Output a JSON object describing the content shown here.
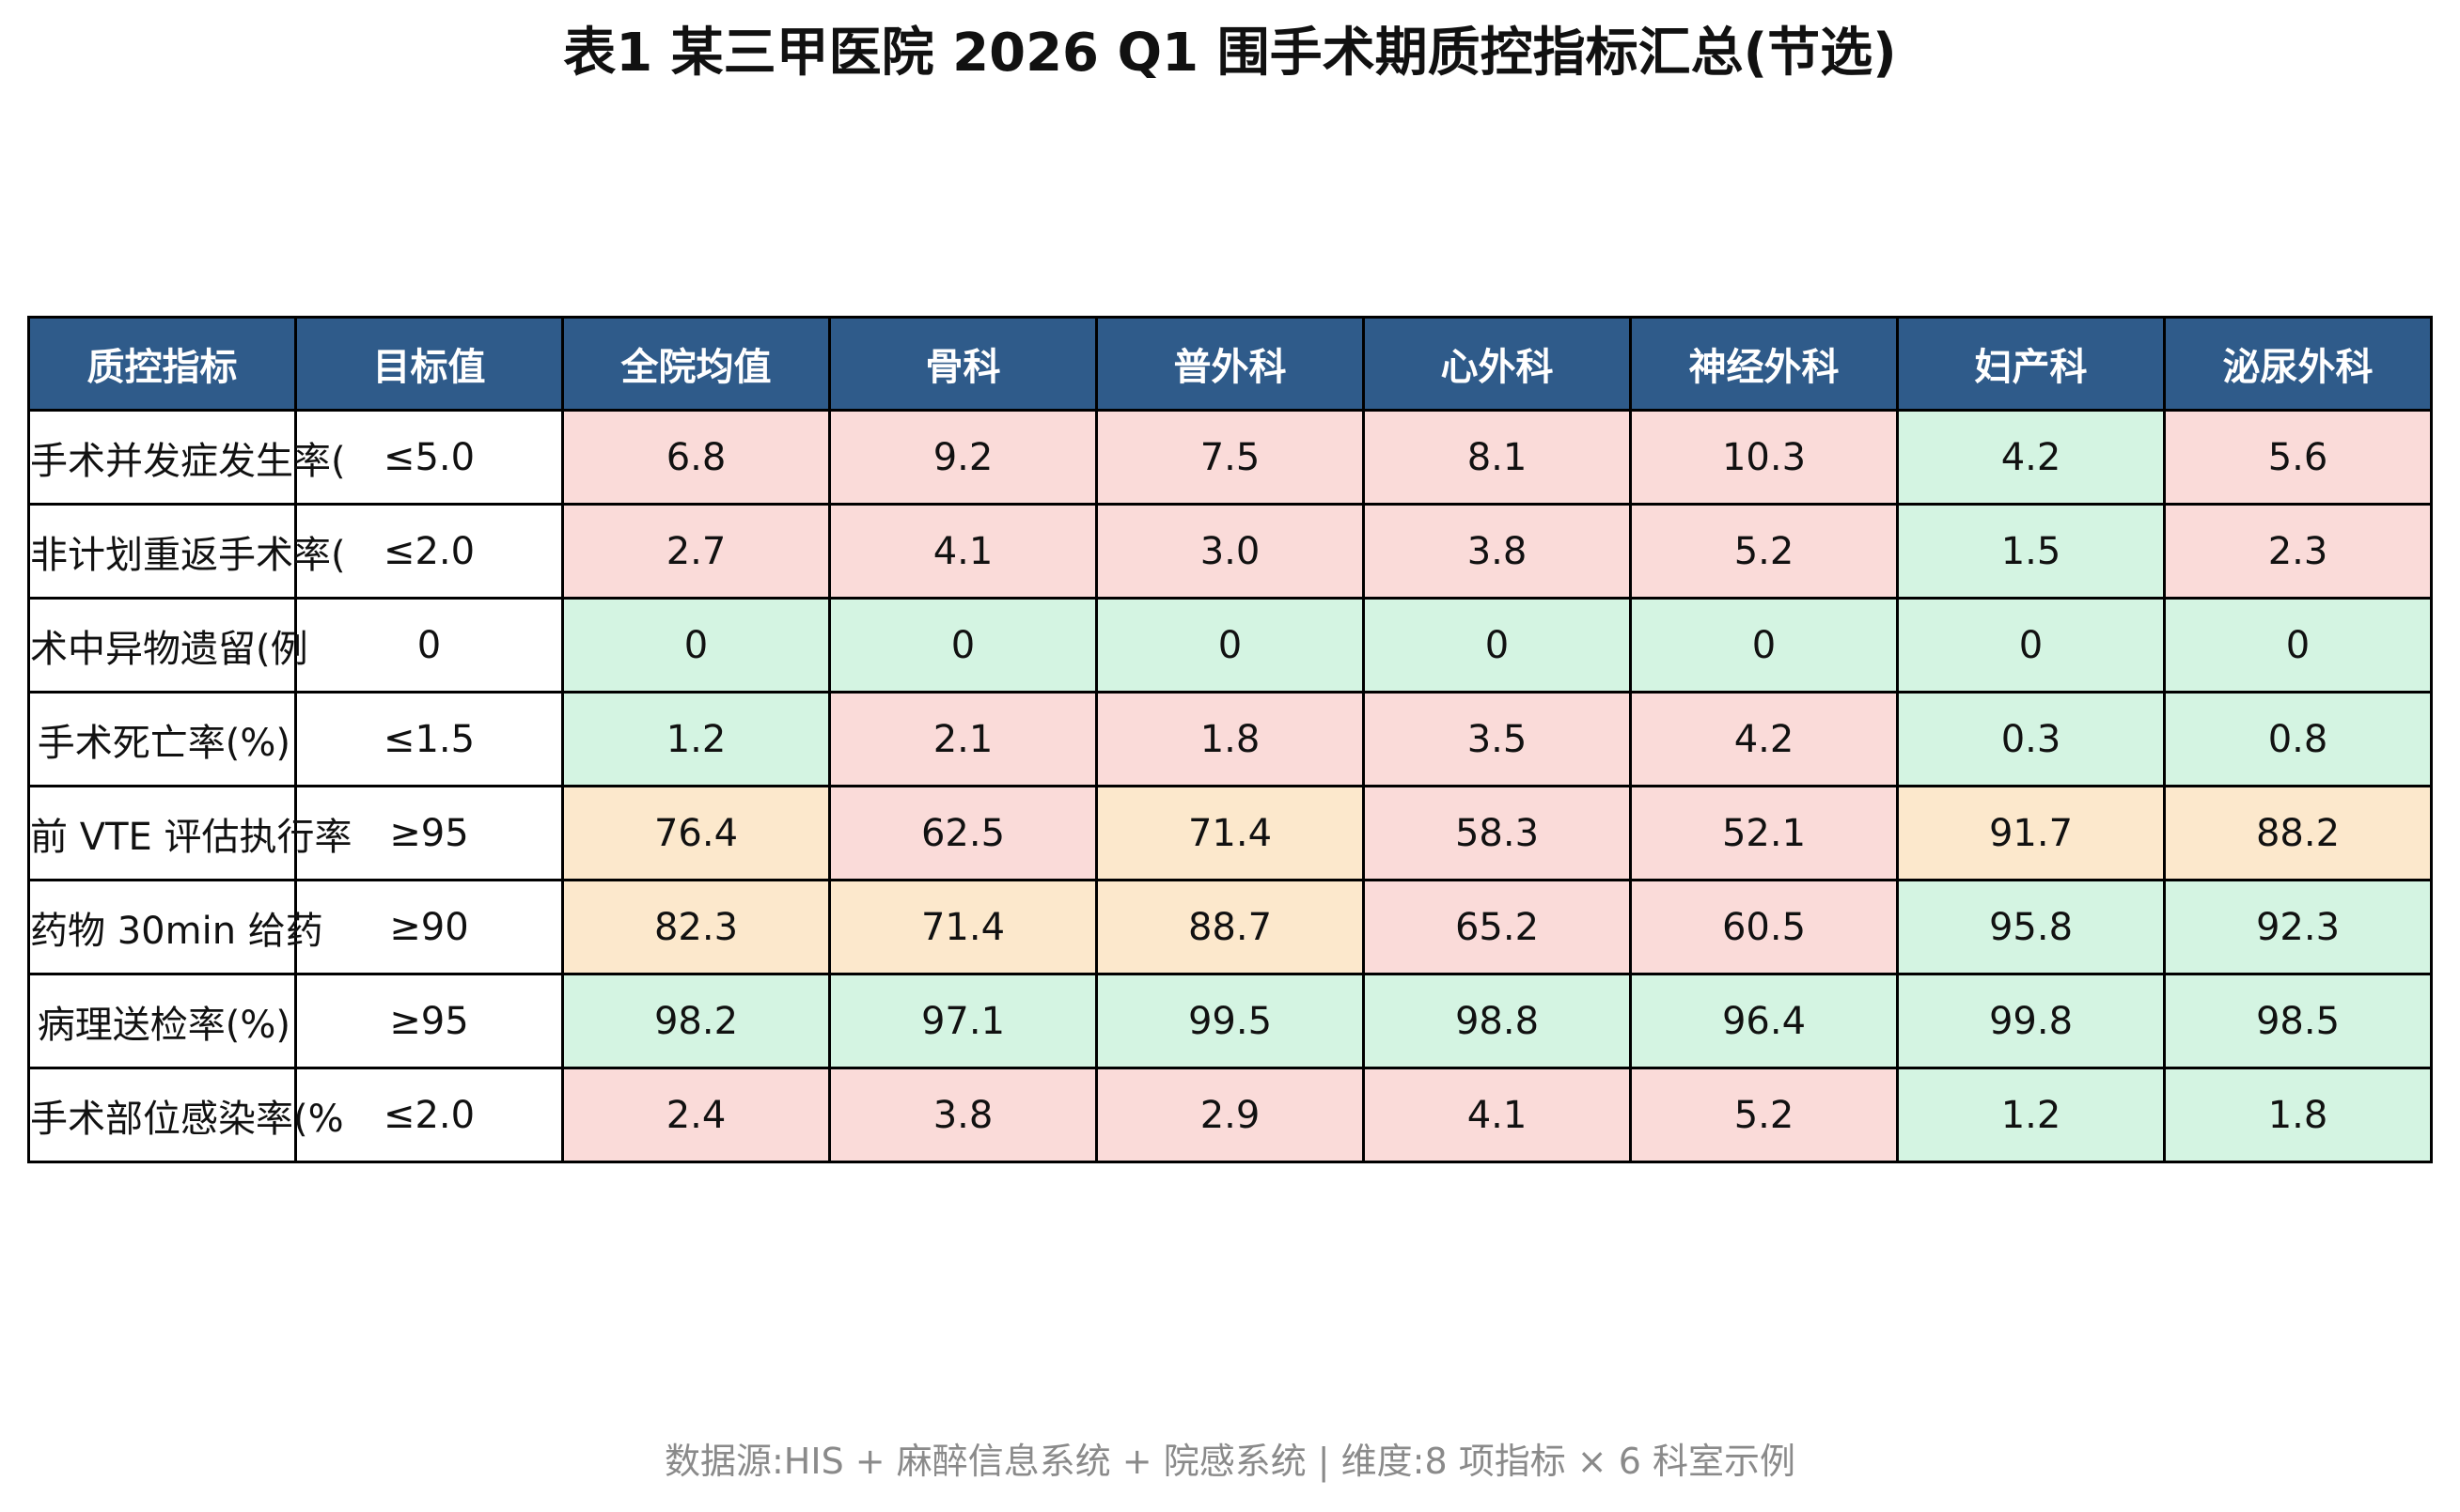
{
  "title": "表1 某三甲医院 2026 Q1 围手术期质控指标汇总(节选)",
  "footer": "数据源:HIS + 麻醉信息系统 + 院感系统 | 维度:8 项指标 × 6 科室示例",
  "colors": {
    "header": "#2f5b8a",
    "header_text": "#ffffff",
    "good": "#d4f4e2",
    "warn": "#fce8cc",
    "bad": "#fadbd9",
    "neutral": "#ffffff",
    "border": "#000000"
  },
  "chart_data": {
    "type": "table",
    "title": "表1 某三甲医院 2026 Q1 围手术期质控指标汇总(节选)",
    "columns": [
      "质控指标",
      "目标值",
      "全院均值",
      "骨科",
      "普外科",
      "心外科",
      "神经外科",
      "妇产科",
      "泌尿外科"
    ],
    "rows": [
      {
        "metric": "手术并发症发生率(",
        "target": "≤5.0",
        "values": [
          "6.8",
          "9.2",
          "7.5",
          "8.1",
          "10.3",
          "4.2",
          "5.6"
        ],
        "status": [
          "bad",
          "bad",
          "bad",
          "bad",
          "bad",
          "good",
          "bad"
        ]
      },
      {
        "metric": "非计划重返手术率(",
        "target": "≤2.0",
        "values": [
          "2.7",
          "4.1",
          "3.0",
          "3.8",
          "5.2",
          "1.5",
          "2.3"
        ],
        "status": [
          "bad",
          "bad",
          "bad",
          "bad",
          "bad",
          "good",
          "bad"
        ]
      },
      {
        "metric": "术中异物遗留(例",
        "target": "0",
        "values": [
          "0",
          "0",
          "0",
          "0",
          "0",
          "0",
          "0"
        ],
        "status": [
          "good",
          "good",
          "good",
          "good",
          "good",
          "good",
          "good"
        ]
      },
      {
        "metric": "手术死亡率(%)",
        "target": "≤1.5",
        "values": [
          "1.2",
          "2.1",
          "1.8",
          "3.5",
          "4.2",
          "0.3",
          "0.8"
        ],
        "status": [
          "good",
          "bad",
          "bad",
          "bad",
          "bad",
          "good",
          "good"
        ]
      },
      {
        "metric": "前 VTE 评估执行率",
        "target": "≥95",
        "values": [
          "76.4",
          "62.5",
          "71.4",
          "58.3",
          "52.1",
          "91.7",
          "88.2"
        ],
        "status": [
          "warn",
          "bad",
          "warn",
          "bad",
          "bad",
          "warn",
          "warn"
        ]
      },
      {
        "metric": "药物 30min 给药",
        "target": "≥90",
        "values": [
          "82.3",
          "71.4",
          "88.7",
          "65.2",
          "60.5",
          "95.8",
          "92.3"
        ],
        "status": [
          "warn",
          "warn",
          "warn",
          "bad",
          "bad",
          "good",
          "good"
        ]
      },
      {
        "metric": "病理送检率(%)",
        "target": "≥95",
        "values": [
          "98.2",
          "97.1",
          "99.5",
          "98.8",
          "96.4",
          "99.8",
          "98.5"
        ],
        "status": [
          "good",
          "good",
          "good",
          "good",
          "good",
          "good",
          "good"
        ]
      },
      {
        "metric": "手术部位感染率(%",
        "target": "≤2.0",
        "values": [
          "2.4",
          "3.8",
          "2.9",
          "4.1",
          "5.2",
          "1.2",
          "1.8"
        ],
        "status": [
          "bad",
          "bad",
          "bad",
          "bad",
          "bad",
          "good",
          "good"
        ]
      }
    ]
  }
}
